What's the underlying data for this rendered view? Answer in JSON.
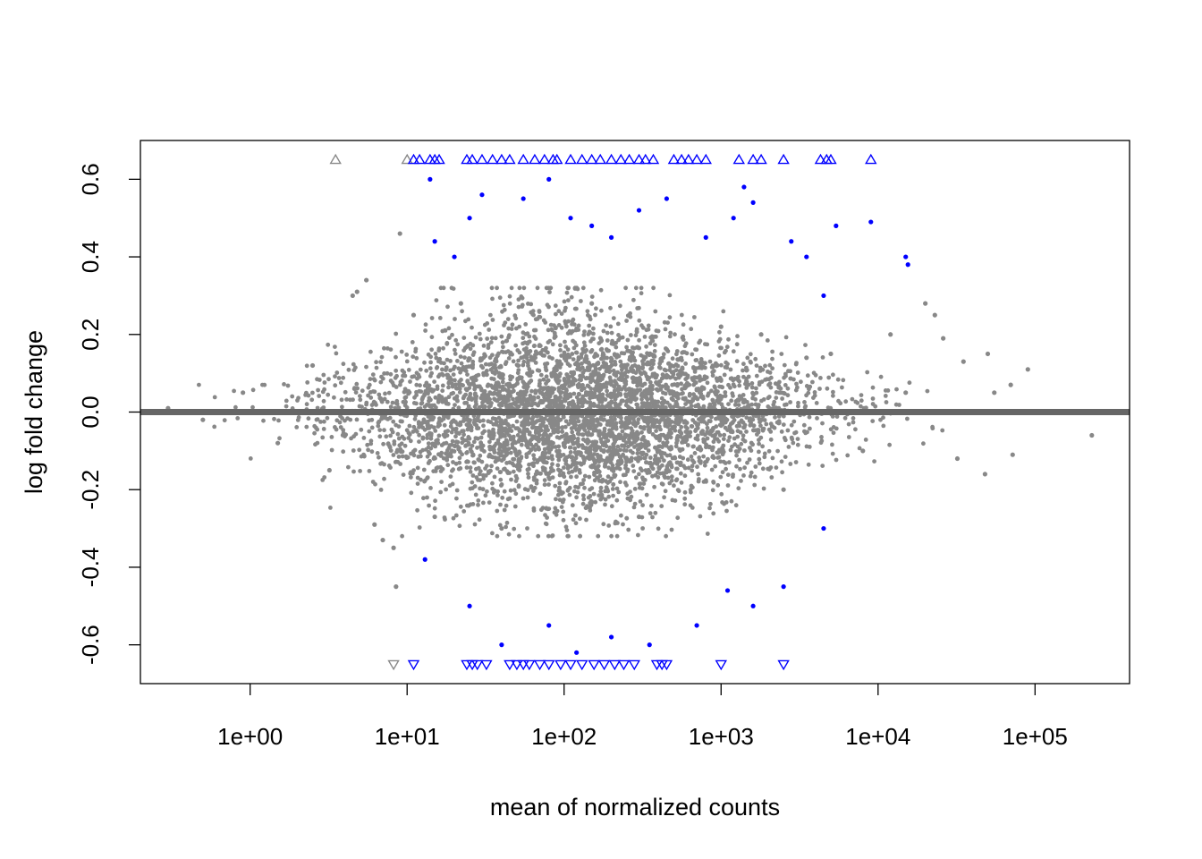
{
  "chart_data": {
    "type": "scatter",
    "title": "",
    "xlabel": "mean of normalized counts",
    "ylabel": "log fold change",
    "x_scale": "log10",
    "xlim": [
      0.2,
      400000
    ],
    "ylim": [
      -0.7,
      0.7
    ],
    "x_ticks": [
      1,
      10,
      100,
      1000,
      10000,
      100000
    ],
    "x_tick_labels": [
      "1e+00",
      "1e+01",
      "1e+02",
      "1e+03",
      "1e+04",
      "1e+05"
    ],
    "y_ticks": [
      -0.6,
      -0.4,
      -0.2,
      0.0,
      0.2,
      0.4,
      0.6
    ],
    "y_tick_labels": [
      "-0.6",
      "-0.4",
      "-0.2",
      "0.0",
      "0.2",
      "0.4",
      "0.6"
    ],
    "reference_line": {
      "y": 0,
      "color": "#666666"
    },
    "grid": false,
    "legend": "none",
    "colors": {
      "significant": "#0000ff",
      "not_significant": "#888888",
      "reference": "#666666"
    },
    "series": [
      {
        "color": "#888888",
        "marker": "dot",
        "points": [
          [
            0.3,
            0.01
          ],
          [
            0.5,
            -0.02
          ],
          [
            0.9,
            0.05
          ],
          [
            1.5,
            -0.08
          ],
          [
            2.5,
            0.12
          ],
          [
            3.2,
            -0.15
          ],
          [
            4.5,
            0.3
          ],
          [
            4.8,
            0.31
          ],
          [
            5.5,
            0.34
          ],
          [
            6.2,
            -0.29
          ],
          [
            7.0,
            -0.33
          ],
          [
            8.2,
            -0.35
          ],
          [
            8.5,
            -0.45
          ],
          [
            9.0,
            0.46
          ],
          [
            11,
            0.25
          ],
          [
            15,
            -0.27
          ],
          [
            22,
            0.28
          ],
          [
            40,
            -0.3
          ],
          [
            150,
            0.28
          ],
          [
            300,
            -0.27
          ],
          [
            1000,
            0.22
          ],
          [
            1800,
            0.2
          ],
          [
            2500,
            -0.2
          ],
          [
            3500,
            0.14
          ],
          [
            5000,
            0.15
          ],
          [
            8000,
            -0.1
          ],
          [
            12000,
            0.2
          ],
          [
            15000,
            0.05
          ],
          [
            20000,
            0.28
          ],
          [
            23000,
            0.25
          ],
          [
            26000,
            0.19
          ],
          [
            35000,
            0.13
          ],
          [
            50000,
            0.15
          ],
          [
            55000,
            0.05
          ],
          [
            70000,
            0.07
          ],
          [
            90000,
            0.11
          ],
          [
            72000,
            -0.11
          ],
          [
            48000,
            -0.16
          ],
          [
            32000,
            -0.12
          ],
          [
            230000,
            -0.06
          ]
        ]
      },
      {
        "color": "#888888",
        "marker": "triangle-up",
        "points": [
          [
            3.5,
            0.65
          ],
          [
            10,
            0.65
          ]
        ]
      },
      {
        "color": "#888888",
        "marker": "triangle-down",
        "points": [
          [
            8.2,
            -0.65
          ]
        ]
      },
      {
        "color": "#0000ff",
        "marker": "dot",
        "points": [
          [
            14,
            0.6
          ],
          [
            15,
            0.44
          ],
          [
            20,
            0.4
          ],
          [
            25,
            0.5
          ],
          [
            30,
            0.56
          ],
          [
            55,
            0.55
          ],
          [
            80,
            0.6
          ],
          [
            110,
            0.5
          ],
          [
            150,
            0.48
          ],
          [
            200,
            0.45
          ],
          [
            300,
            0.52
          ],
          [
            450,
            0.55
          ],
          [
            800,
            0.45
          ],
          [
            1200,
            0.5
          ],
          [
            1400,
            0.58
          ],
          [
            1600,
            0.54
          ],
          [
            2800,
            0.44
          ],
          [
            3500,
            0.4
          ],
          [
            4500,
            0.3
          ],
          [
            5400,
            0.48
          ],
          [
            9000,
            0.49
          ],
          [
            15000,
            0.4
          ],
          [
            15500,
            0.38
          ],
          [
            13,
            -0.38
          ],
          [
            25,
            -0.5
          ],
          [
            40,
            -0.6
          ],
          [
            80,
            -0.55
          ],
          [
            120,
            -0.62
          ],
          [
            200,
            -0.58
          ],
          [
            350,
            -0.6
          ],
          [
            700,
            -0.55
          ],
          [
            1100,
            -0.46
          ],
          [
            1600,
            -0.5
          ],
          [
            2500,
            -0.45
          ],
          [
            4500,
            -0.3
          ]
        ]
      },
      {
        "color": "#0000ff",
        "marker": "triangle-up",
        "points": [
          [
            11,
            0.65
          ],
          [
            12,
            0.65
          ],
          [
            14,
            0.65
          ],
          [
            15,
            0.65
          ],
          [
            16,
            0.65
          ],
          [
            24,
            0.65
          ],
          [
            26,
            0.65
          ],
          [
            30,
            0.65
          ],
          [
            35,
            0.65
          ],
          [
            40,
            0.65
          ],
          [
            45,
            0.65
          ],
          [
            55,
            0.65
          ],
          [
            65,
            0.65
          ],
          [
            75,
            0.65
          ],
          [
            85,
            0.65
          ],
          [
            90,
            0.65
          ],
          [
            110,
            0.65
          ],
          [
            130,
            0.65
          ],
          [
            150,
            0.65
          ],
          [
            170,
            0.65
          ],
          [
            200,
            0.65
          ],
          [
            230,
            0.65
          ],
          [
            260,
            0.65
          ],
          [
            300,
            0.65
          ],
          [
            330,
            0.65
          ],
          [
            370,
            0.65
          ],
          [
            500,
            0.65
          ],
          [
            560,
            0.65
          ],
          [
            620,
            0.65
          ],
          [
            700,
            0.65
          ],
          [
            800,
            0.65
          ],
          [
            1300,
            0.65
          ],
          [
            1600,
            0.65
          ],
          [
            1800,
            0.65
          ],
          [
            2500,
            0.65
          ],
          [
            4300,
            0.65
          ],
          [
            4700,
            0.65
          ],
          [
            5000,
            0.65
          ],
          [
            9000,
            0.65
          ]
        ]
      },
      {
        "color": "#0000ff",
        "marker": "triangle-down",
        "points": [
          [
            11,
            -0.65
          ],
          [
            24,
            -0.65
          ],
          [
            26,
            -0.65
          ],
          [
            28,
            -0.65
          ],
          [
            32,
            -0.65
          ],
          [
            45,
            -0.65
          ],
          [
            50,
            -0.65
          ],
          [
            55,
            -0.65
          ],
          [
            60,
            -0.65
          ],
          [
            70,
            -0.65
          ],
          [
            80,
            -0.65
          ],
          [
            95,
            -0.65
          ],
          [
            110,
            -0.65
          ],
          [
            130,
            -0.65
          ],
          [
            155,
            -0.65
          ],
          [
            180,
            -0.65
          ],
          [
            210,
            -0.65
          ],
          [
            240,
            -0.65
          ],
          [
            280,
            -0.65
          ],
          [
            390,
            -0.65
          ],
          [
            420,
            -0.65
          ],
          [
            450,
            -0.65
          ],
          [
            1000,
            -0.65
          ],
          [
            2500,
            -0.65
          ]
        ]
      }
    ]
  }
}
